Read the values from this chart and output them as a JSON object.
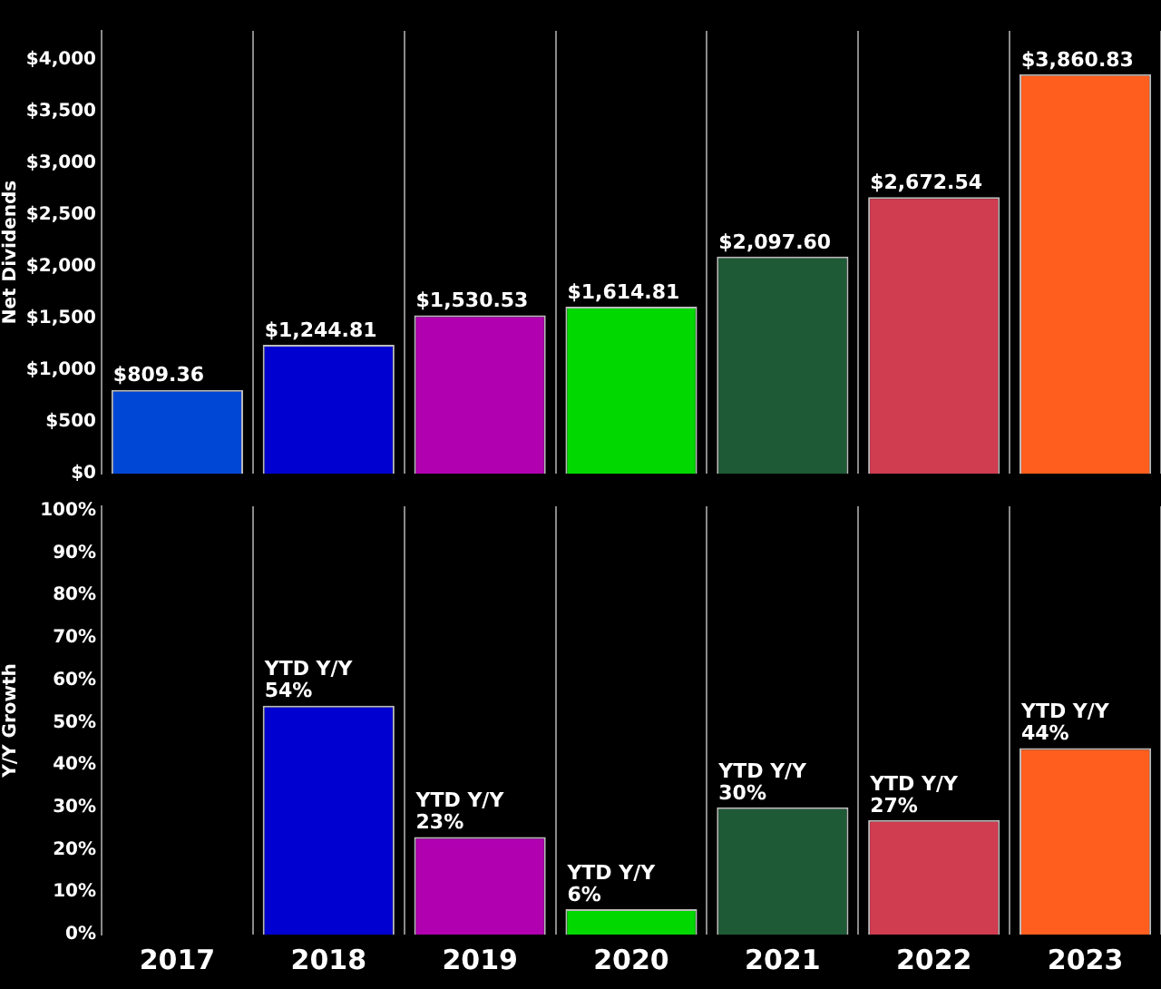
{
  "chart_data": [
    {
      "type": "bar",
      "ylabel": "Net Dividends",
      "categories": [
        "2017",
        "2018",
        "2019",
        "2020",
        "2021",
        "2022",
        "2023"
      ],
      "values": [
        809.36,
        1244.81,
        1530.53,
        1614.81,
        2097.6,
        2672.54,
        3860.83
      ],
      "colors": [
        "#0047d6",
        "#0000d0",
        "#b000b0",
        "#00d800",
        "#1e5a36",
        "#d03c50",
        "#ff5e1e"
      ],
      "value_labels": [
        "$809.36",
        "$1,244.81",
        "$1,530.53",
        "$1,614.81",
        "$2,097.60",
        "$2,672.54",
        "$3,860.83"
      ],
      "ylim": [
        0,
        4280
      ],
      "yticks": [
        {
          "value": 0,
          "label": "$0"
        },
        {
          "value": 500,
          "label": "$500"
        },
        {
          "value": 1000,
          "label": "$1,000"
        },
        {
          "value": 1500,
          "label": "$1,500"
        },
        {
          "value": 2000,
          "label": "$2,000"
        },
        {
          "value": 2500,
          "label": "$2,500"
        },
        {
          "value": 3000,
          "label": "$3,000"
        },
        {
          "value": 3500,
          "label": "$3,500"
        },
        {
          "value": 4000,
          "label": "$4,000"
        }
      ],
      "grid": "x",
      "tick_labels": "y"
    },
    {
      "type": "bar",
      "ylabel": "Y/Y Growth",
      "categories": [
        "2017",
        "2018",
        "2019",
        "2020",
        "2021",
        "2022",
        "2023"
      ],
      "values": [
        null,
        54,
        23,
        6,
        30,
        27,
        44
      ],
      "colors": [
        "#0047d6",
        "#0000d0",
        "#b000b0",
        "#00d800",
        "#1e5a36",
        "#d03c50",
        "#ff5e1e"
      ],
      "value_labels": [
        null,
        "YTD Y/Y\n54%",
        "YTD Y/Y\n23%",
        "YTD Y/Y\n6%",
        "YTD Y/Y\n30%",
        "YTD Y/Y\n27%",
        "YTD Y/Y\n44%"
      ],
      "ylim": [
        0,
        101
      ],
      "yticks": [
        {
          "value": 0,
          "label": "0%"
        },
        {
          "value": 10,
          "label": "10%"
        },
        {
          "value": 20,
          "label": "20%"
        },
        {
          "value": 30,
          "label": "30%"
        },
        {
          "value": 40,
          "label": "40%"
        },
        {
          "value": 50,
          "label": "50%"
        },
        {
          "value": 60,
          "label": "60%"
        },
        {
          "value": 70,
          "label": "70%"
        },
        {
          "value": 80,
          "label": "80%"
        },
        {
          "value": 90,
          "label": "90%"
        },
        {
          "value": 100,
          "label": "100%"
        }
      ],
      "grid": "x"
    }
  ]
}
